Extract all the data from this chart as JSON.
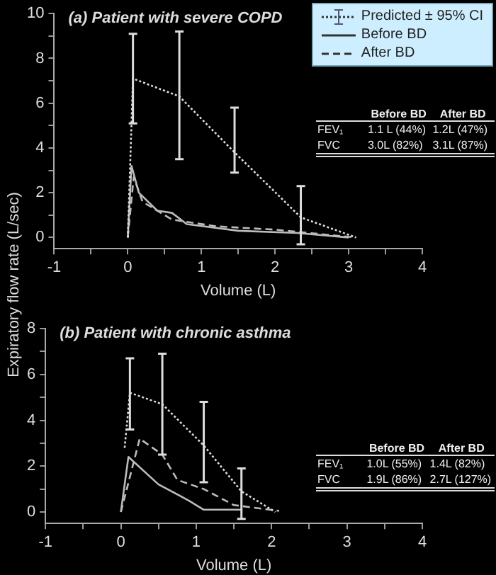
{
  "chart_data": [
    {
      "type": "line",
      "title": "(a) Patient with severe COPD",
      "xlabel": "Volume (L)",
      "ylabel": "Expiratory flow rate (L/sec)",
      "xlim": [
        -1,
        4
      ],
      "xticks": [
        -1,
        {
          "value": -0.5,
          "label": null
        },
        0,
        {
          "value": 0.5,
          "label": null
        },
        1,
        {
          "value": 1.5,
          "label": null
        },
        2,
        {
          "value": 2.5,
          "label": null
        },
        3,
        {
          "value": 3.5,
          "label": null
        },
        4
      ],
      "ylim": [
        -0.5,
        10
      ],
      "yticks": [
        0,
        {
          "value": 1,
          "label": null
        },
        2,
        {
          "value": 3,
          "label": null
        },
        4,
        {
          "value": 5,
          "label": null
        },
        6,
        {
          "value": 7,
          "label": null
        },
        8,
        {
          "value": 9,
          "label": null
        },
        10
      ],
      "legend": "top right",
      "marker": "none",
      "series": [
        {
          "name": "Predicted ± 95% CI",
          "color": "#dddddd",
          "line_style": "dotted",
          "x": [
            0,
            0.07,
            0.7,
            1.45,
            2.35,
            3.1
          ],
          "values": [
            0,
            7.1,
            6.3,
            3.8,
            0.9,
            0
          ],
          "errors": [
            null,
            [
              5.1,
              9.1
            ],
            [
              3.5,
              9.2
            ],
            [
              2.9,
              5.8
            ],
            [
              -0.3,
              2.3
            ],
            null
          ]
        },
        {
          "name": "Before BD",
          "color": "#bbbbbb",
          "line_style": "solid",
          "x": [
            0,
            0.05,
            0.15,
            0.4,
            0.6,
            0.8,
            1.5,
            2.3,
            3.0
          ],
          "values": [
            0,
            3.2,
            2.0,
            1.2,
            1.1,
            0.6,
            0.3,
            0.2,
            0
          ]
        },
        {
          "name": "After BD",
          "color": "#bbbbbb",
          "line_style": "dashed",
          "x": [
            0,
            0.08,
            0.2,
            0.6,
            1.2,
            2.0,
            3.1
          ],
          "values": [
            0,
            2.7,
            1.6,
            0.8,
            0.5,
            0.35,
            0
          ]
        }
      ],
      "annotations": [
        "Before BD",
        "After BD",
        "FEV₁",
        "1.1 L (44%)",
        "1.2L (47%)",
        "FVC",
        "3.0L (82%)",
        "3.1L (87%)"
      ]
    },
    {
      "type": "line",
      "title": "(b) Patient with chronic asthma",
      "xlabel": "Volume (L)",
      "xlim": [
        -1,
        4
      ],
      "xticks": [
        -1,
        {
          "value": -0.5,
          "label": null
        },
        0,
        {
          "value": 0.5,
          "label": null
        },
        1,
        {
          "value": 1.5,
          "label": null
        },
        2,
        {
          "value": 2.5,
          "label": null
        },
        3,
        {
          "value": 3.5,
          "label": null
        },
        4
      ],
      "ylim": [
        -0.5,
        8
      ],
      "yticks": [
        0,
        {
          "value": 1,
          "label": null
        },
        2,
        {
          "value": 3,
          "label": null
        },
        4,
        {
          "value": 5,
          "label": null
        },
        6,
        {
          "value": 7,
          "label": null
        },
        8
      ],
      "marker": "none",
      "series": [
        {
          "color": "#dddddd",
          "line_style": "dotted",
          "x": [
            0.05,
            0.12,
            0.55,
            1.1,
            1.6,
            2.05
          ],
          "values": [
            2.8,
            5.2,
            4.7,
            2.9,
            0.9,
            0
          ],
          "errors": [
            null,
            [
              3.6,
              6.7
            ],
            [
              2.5,
              6.9
            ],
            [
              1.3,
              4.8
            ],
            [
              -0.3,
              1.9
            ],
            null
          ]
        },
        {
          "color": "#bbbbbb",
          "line_style": "solid",
          "x": [
            0,
            0.1,
            0.5,
            0.9,
            1.1,
            1.6
          ],
          "values": [
            0,
            2.4,
            1.2,
            0.5,
            0.1,
            0.1
          ]
        },
        {
          "color": "#bbbbbb",
          "line_style": "dashed",
          "x": [
            0,
            0.25,
            0.55,
            0.75,
            1.1,
            1.5,
            2.1
          ],
          "values": [
            0,
            3.2,
            2.5,
            1.4,
            1.0,
            0.3,
            0.05
          ]
        }
      ],
      "annotations": [
        "Before BD",
        "After BD",
        "FEV₁",
        "1.0L (55%)",
        "1.4L (82%)",
        "FVC",
        "1.9L (86%)",
        "2.7L (127%)"
      ]
    }
  ]
}
